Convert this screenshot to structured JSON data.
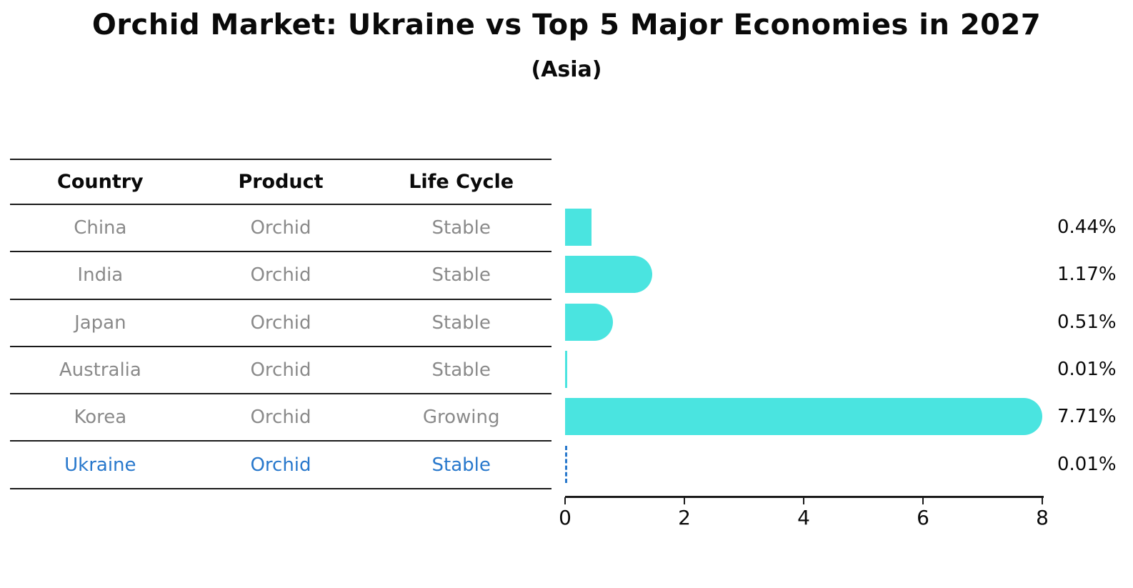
{
  "title": "Orchid Market: Ukraine vs Top 5 Major Economies in 2027",
  "subtitle": "(Asia)",
  "table": {
    "headers": [
      "Country",
      "Product",
      "Life Cycle"
    ],
    "rows": [
      {
        "country": "China",
        "product": "Orchid",
        "life_cycle": "Stable",
        "highlight": false
      },
      {
        "country": "India",
        "product": "Orchid",
        "life_cycle": "Stable",
        "highlight": false
      },
      {
        "country": "Japan",
        "product": "Orchid",
        "life_cycle": "Stable",
        "highlight": false
      },
      {
        "country": "Australia",
        "product": "Orchid",
        "life_cycle": "Stable",
        "highlight": false
      },
      {
        "country": "Korea",
        "product": "Orchid",
        "life_cycle": "Growing",
        "highlight": false
      },
      {
        "country": "Ukraine",
        "product": "Orchid",
        "life_cycle": "Stable",
        "highlight": true
      }
    ]
  },
  "chart_data": {
    "type": "bar",
    "orientation": "horizontal",
    "title": "Orchid Market: Ukraine vs Top 5 Major Economies in 2027",
    "subtitle": "(Asia)",
    "categories": [
      "China",
      "India",
      "Japan",
      "Australia",
      "Korea",
      "Ukraine"
    ],
    "values": [
      0.44,
      1.17,
      0.51,
      0.01,
      7.71,
      0.01
    ],
    "value_labels": [
      "0.44%",
      "1.17%",
      "0.51%",
      "0.01%",
      "7.71%",
      "0.01%"
    ],
    "xlabel": "",
    "ylabel": "",
    "xlim": [
      0,
      8
    ],
    "x_ticks": [
      0,
      2,
      4,
      6,
      8
    ],
    "grid": false,
    "legend": false,
    "highlight_index": 5,
    "highlight_style": "dashed-blue-line"
  },
  "colors": {
    "bar": "#4AE4E0",
    "highlight_blue": "#2878CC",
    "text_black": "#0a0a0a",
    "text_gray": "#8a8a8a",
    "line_black": "#1a1a1a"
  }
}
